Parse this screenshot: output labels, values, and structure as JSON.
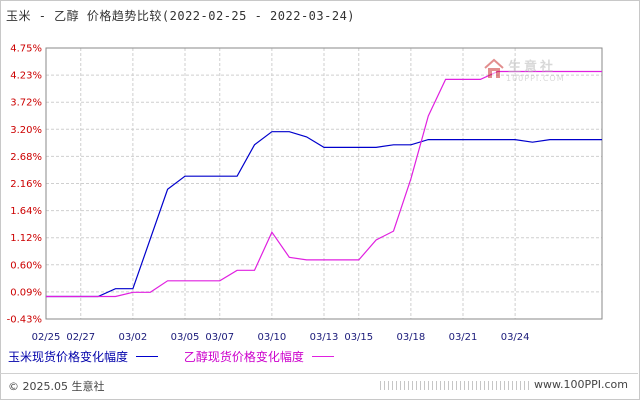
{
  "title": "玉米 - 乙醇 价格趋势比较(2022-02-25 - 2022-03-24)",
  "chart_data": {
    "type": "line",
    "title": "玉米 - 乙醇 价格趋势比较(2022-02-25 - 2022-03-24)",
    "ylim": [
      -0.43,
      4.75
    ],
    "y_ticks": [
      "4.75%",
      "4.23%",
      "3.72%",
      "3.20%",
      "2.68%",
      "2.16%",
      "1.64%",
      "1.12%",
      "0.60%",
      "0.09%",
      "-0.43%"
    ],
    "x_ticks": [
      "02/25",
      "02/27",
      "03/02",
      "03/05",
      "03/07",
      "03/10",
      "03/13",
      "03/15",
      "03/18",
      "03/21",
      "03/24"
    ],
    "x_days": [
      0,
      2,
      5,
      8,
      10,
      13,
      16,
      18,
      21,
      24,
      27
    ],
    "grid": true,
    "legend_position": "bottom",
    "series": [
      {
        "name": "玉米现货价格变化幅度",
        "color": "#0000cc",
        "points": [
          [
            0,
            0.0
          ],
          [
            2,
            0.0
          ],
          [
            3,
            0.0
          ],
          [
            4,
            0.15
          ],
          [
            5,
            0.15
          ],
          [
            7,
            2.05
          ],
          [
            8,
            2.3
          ],
          [
            11,
            2.3
          ],
          [
            12,
            2.9
          ],
          [
            13,
            3.15
          ],
          [
            14,
            3.15
          ],
          [
            15,
            3.05
          ],
          [
            16,
            2.85
          ],
          [
            19,
            2.85
          ],
          [
            20,
            2.9
          ],
          [
            21,
            2.9
          ],
          [
            22,
            3.0
          ],
          [
            24,
            3.0
          ],
          [
            25,
            3.0
          ],
          [
            27,
            3.0
          ],
          [
            28,
            2.95
          ],
          [
            29,
            3.0
          ],
          [
            31,
            3.0
          ],
          [
            32,
            3.0
          ]
        ]
      },
      {
        "name": "乙醇现货价格变化幅度",
        "color": "#e020e0",
        "points": [
          [
            0,
            0.0
          ],
          [
            3,
            0.0
          ],
          [
            4,
            0.0
          ],
          [
            5,
            0.08
          ],
          [
            6,
            0.08
          ],
          [
            7,
            0.3
          ],
          [
            9,
            0.3
          ],
          [
            10,
            0.3
          ],
          [
            11,
            0.5
          ],
          [
            12,
            0.5
          ],
          [
            13,
            1.23
          ],
          [
            14,
            0.75
          ],
          [
            15,
            0.7
          ],
          [
            16,
            0.7
          ],
          [
            18,
            0.7
          ],
          [
            19,
            1.08
          ],
          [
            20,
            1.25
          ],
          [
            21,
            2.25
          ],
          [
            22,
            3.45
          ],
          [
            23,
            4.15
          ],
          [
            24,
            4.15
          ],
          [
            25,
            4.15
          ],
          [
            26,
            4.3
          ],
          [
            27,
            4.3
          ],
          [
            29,
            4.3
          ],
          [
            31,
            4.3
          ],
          [
            32,
            4.3
          ]
        ]
      }
    ]
  },
  "legend": {
    "series1": "玉米现货价格变化幅度",
    "series2": "乙醇现货价格变化幅度"
  },
  "watermark": {
    "name": "生意社",
    "url": "100PPI.COM"
  },
  "footer": {
    "copyright": "© 2025.05 生意社",
    "url": "www.100PPI.com"
  }
}
